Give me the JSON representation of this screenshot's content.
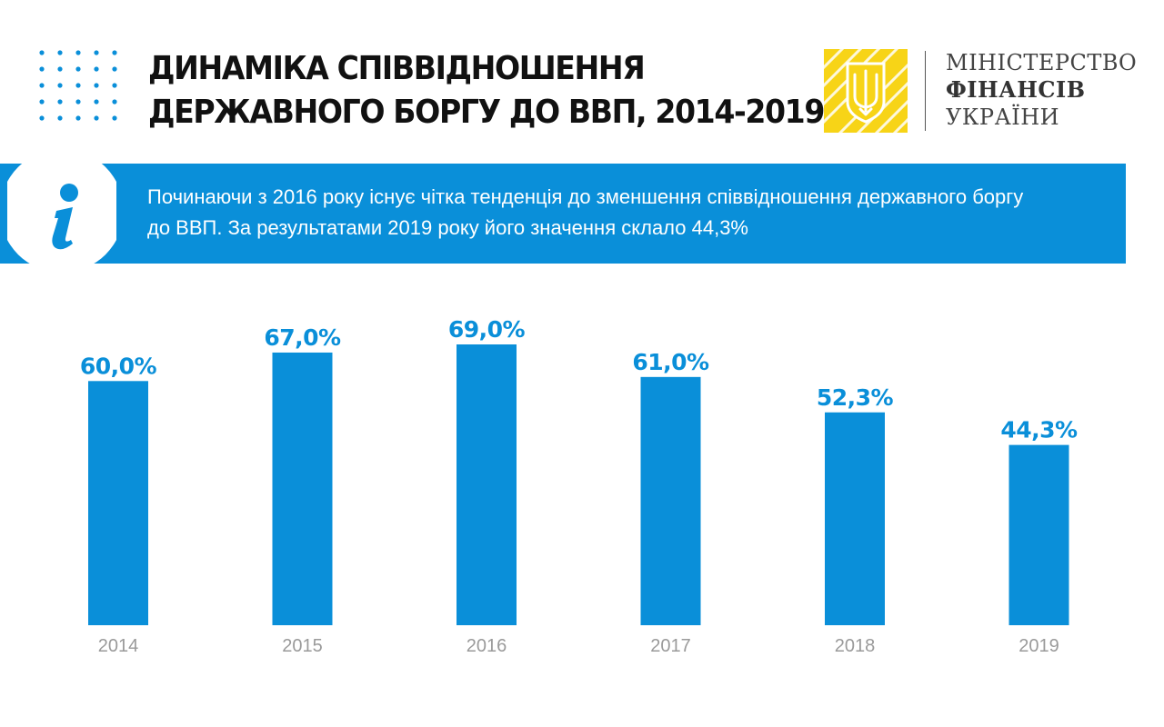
{
  "header": {
    "title_line1": "ДИНАМІКА  СПІВВІДНОШЕННЯ",
    "title_line2": "ДЕРЖАВНОГО БОРГУ ДО ВВП, 2014-2019"
  },
  "ministry": {
    "line1": "МІНІСТЕРСТВО",
    "line2": "ФІНАНСІВ",
    "line3": "УКРАЇНИ",
    "logo_icon": "trident-emblem-icon"
  },
  "info": {
    "icon": "info-icon",
    "text_line1": "Починаючи з 2016 року існує чітка тенденція до зменшення співвідношення державного боргу",
    "text_line2": "до ВВП.  За результатами 2019 року його значення склало 44,3%"
  },
  "colors": {
    "accent": "#0a8fd9",
    "logo_yellow": "#f7d417",
    "year_label": "#9a9a9a",
    "title": "#111111"
  },
  "chart_data": {
    "type": "bar",
    "categories": [
      "2014",
      "2015",
      "2016",
      "2017",
      "2018",
      "2019"
    ],
    "values": [
      60.0,
      67.0,
      69.0,
      61.0,
      52.3,
      44.3
    ],
    "value_labels": [
      "60,0%",
      "67,0%",
      "69,0%",
      "61,0%",
      "52,3%",
      "44,3%"
    ],
    "title": "ДИНАМІКА СПІВВІДНОШЕННЯ ДЕРЖАВНОГО БОРГУ ДО ВВП, 2014-2019",
    "xlabel": "",
    "ylabel": "",
    "ylim": [
      0,
      69
    ],
    "grid": false,
    "legend": "none"
  }
}
